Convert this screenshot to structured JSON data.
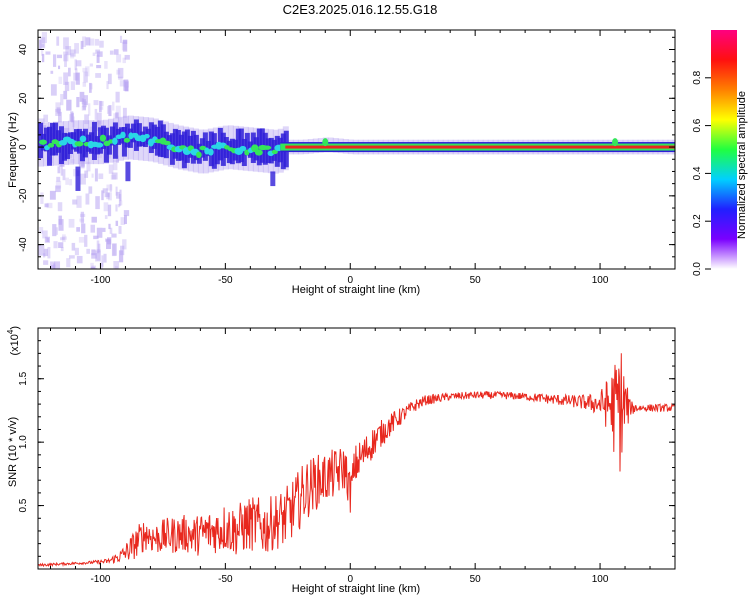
{
  "title": "C2E3.2025.016.12.55.G18",
  "colors": {
    "snr_line": "#e8281e",
    "spectrum_ridge": "#e8281e",
    "spectrum_core": "#34e65a",
    "spectrum_halo": "#2f1ed8",
    "spectrum_fringe": "#b9a6f2",
    "colorbar": [
      "#ffffff",
      "#7a00ff",
      "#2020ff",
      "#00d0ff",
      "#20ff40",
      "#ffff00",
      "#ff8000",
      "#ff1010",
      "#ff0080"
    ]
  },
  "chart_data": [
    {
      "type": "heatmap",
      "name": "spectrogram",
      "xlabel": "Height of straight line (km)",
      "ylabel": "Frequency (Hz)",
      "xlim": [
        -125,
        130
      ],
      "ylim": [
        -50,
        48
      ],
      "xticks": [
        -100,
        -50,
        0,
        50,
        100
      ],
      "xtick_labels": [
        "-100",
        "-50",
        "0",
        "50",
        "100"
      ],
      "yticks": [
        -40,
        -20,
        0,
        20,
        40
      ],
      "ytick_labels": [
        "-40",
        "-20",
        "0",
        "20",
        "40"
      ],
      "ridge": {
        "x": [
          -125,
          -110,
          -100,
          -90,
          -80,
          -70,
          -60,
          -50,
          -40,
          -30,
          -26,
          -20,
          -10,
          0,
          10,
          20,
          50,
          100,
          106,
          130
        ],
        "frequency": [
          1,
          2,
          2,
          4,
          3,
          0,
          -2,
          0,
          -1,
          -2,
          0,
          0,
          1,
          0,
          0,
          0,
          0,
          0,
          0,
          0
        ]
      },
      "colorbar": {
        "label": "Normalized spectral amplitude",
        "range": [
          0,
          1
        ],
        "ticks": [
          0.0,
          0.2,
          0.4,
          0.6,
          0.8
        ],
        "tick_labels": [
          "0.0",
          "0.2",
          "0.4",
          "0.6",
          "0.8"
        ]
      }
    },
    {
      "type": "line",
      "name": "snr",
      "xlabel": "Height of straight line (km)",
      "ylabel": "SNR (10 * v/v)",
      "scale_label": "(x10",
      "scale_exponent": "4",
      "scale_close": ")",
      "xlim": [
        -125,
        130
      ],
      "ylim": [
        0,
        1.9
      ],
      "xticks": [
        -100,
        -50,
        0,
        50,
        100
      ],
      "xtick_labels": [
        "-100",
        "-50",
        "0",
        "50",
        "100"
      ],
      "yticks": [
        0.5,
        1.0,
        1.5
      ],
      "ytick_labels": [
        "0.5",
        "1.0",
        "1.5"
      ],
      "series": [
        {
          "name": "SNR",
          "x": [
            -125,
            -115,
            -105,
            -97,
            -92,
            -88,
            -85,
            -82,
            -78,
            -74,
            -70,
            -66,
            -62,
            -58,
            -54,
            -50,
            -46,
            -42,
            -38,
            -34,
            -30,
            -26,
            -22,
            -18,
            -14,
            -10,
            -6,
            -2,
            0,
            2,
            6,
            10,
            14,
            18,
            22,
            26,
            30,
            40,
            50,
            60,
            70,
            80,
            90,
            96,
            100,
            104,
            106,
            108,
            110,
            112,
            116,
            120,
            125,
            130
          ],
          "y": [
            0.03,
            0.04,
            0.05,
            0.06,
            0.1,
            0.16,
            0.22,
            0.28,
            0.24,
            0.26,
            0.27,
            0.28,
            0.26,
            0.29,
            0.3,
            0.33,
            0.3,
            0.34,
            0.36,
            0.32,
            0.38,
            0.4,
            0.5,
            0.62,
            0.68,
            0.72,
            0.75,
            0.8,
            0.6,
            0.82,
            0.92,
            1.02,
            1.1,
            1.17,
            1.23,
            1.29,
            1.33,
            1.36,
            1.37,
            1.37,
            1.36,
            1.34,
            1.32,
            1.31,
            1.3,
            1.3,
            1.25,
            1.3,
            1.28,
            1.27,
            1.27,
            1.27,
            1.27,
            1.27
          ],
          "noise_amplitude": [
            0.01,
            0.01,
            0.01,
            0.02,
            0.05,
            0.1,
            0.13,
            0.13,
            0.13,
            0.14,
            0.15,
            0.15,
            0.16,
            0.17,
            0.18,
            0.2,
            0.2,
            0.22,
            0.22,
            0.22,
            0.22,
            0.24,
            0.24,
            0.24,
            0.22,
            0.2,
            0.2,
            0.18,
            0.16,
            0.16,
            0.14,
            0.12,
            0.1,
            0.08,
            0.06,
            0.05,
            0.04,
            0.03,
            0.03,
            0.03,
            0.03,
            0.04,
            0.05,
            0.07,
            0.1,
            0.25,
            0.4,
            0.55,
            0.3,
            0.06,
            0.03,
            0.03,
            0.03,
            0.03
          ]
        }
      ]
    }
  ]
}
